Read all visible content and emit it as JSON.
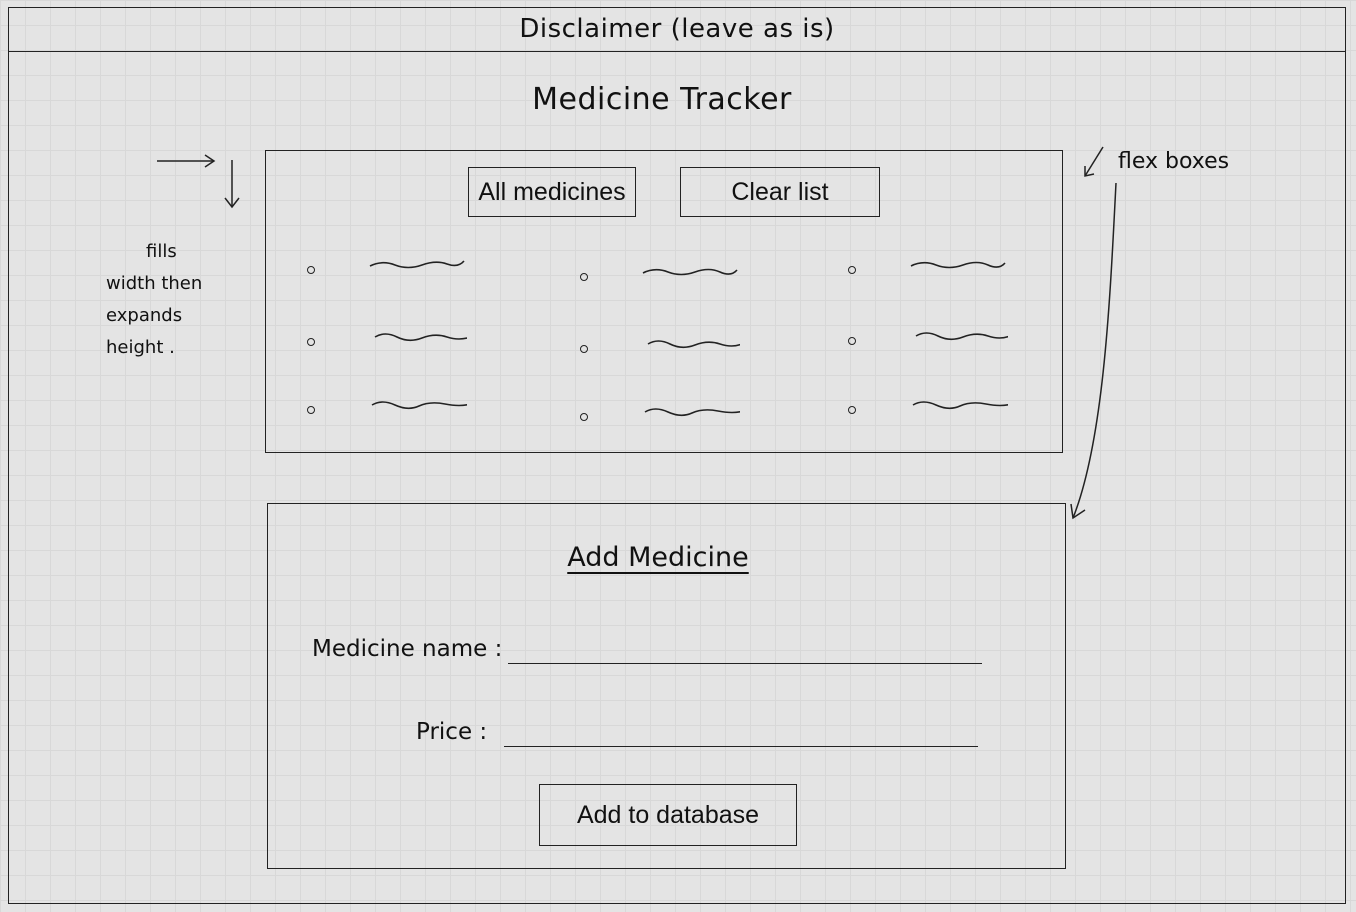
{
  "header": {
    "disclaimer": "Disclaimer (leave as is)"
  },
  "page_title": "Medicine Tracker",
  "list_panel": {
    "all_medicines_button": "All medicines",
    "clear_list_button": "Clear list",
    "items_count_visible": 9
  },
  "add_panel": {
    "title": "Add Medicine",
    "medicine_name_label": "Medicine name :",
    "price_label": "Price :",
    "add_button": "Add to database"
  },
  "annotations": {
    "left_note_line1": "fills",
    "left_note_line2": "width then",
    "left_note_line3": "expands",
    "left_note_line4": "height .",
    "right_note": "flex boxes"
  }
}
